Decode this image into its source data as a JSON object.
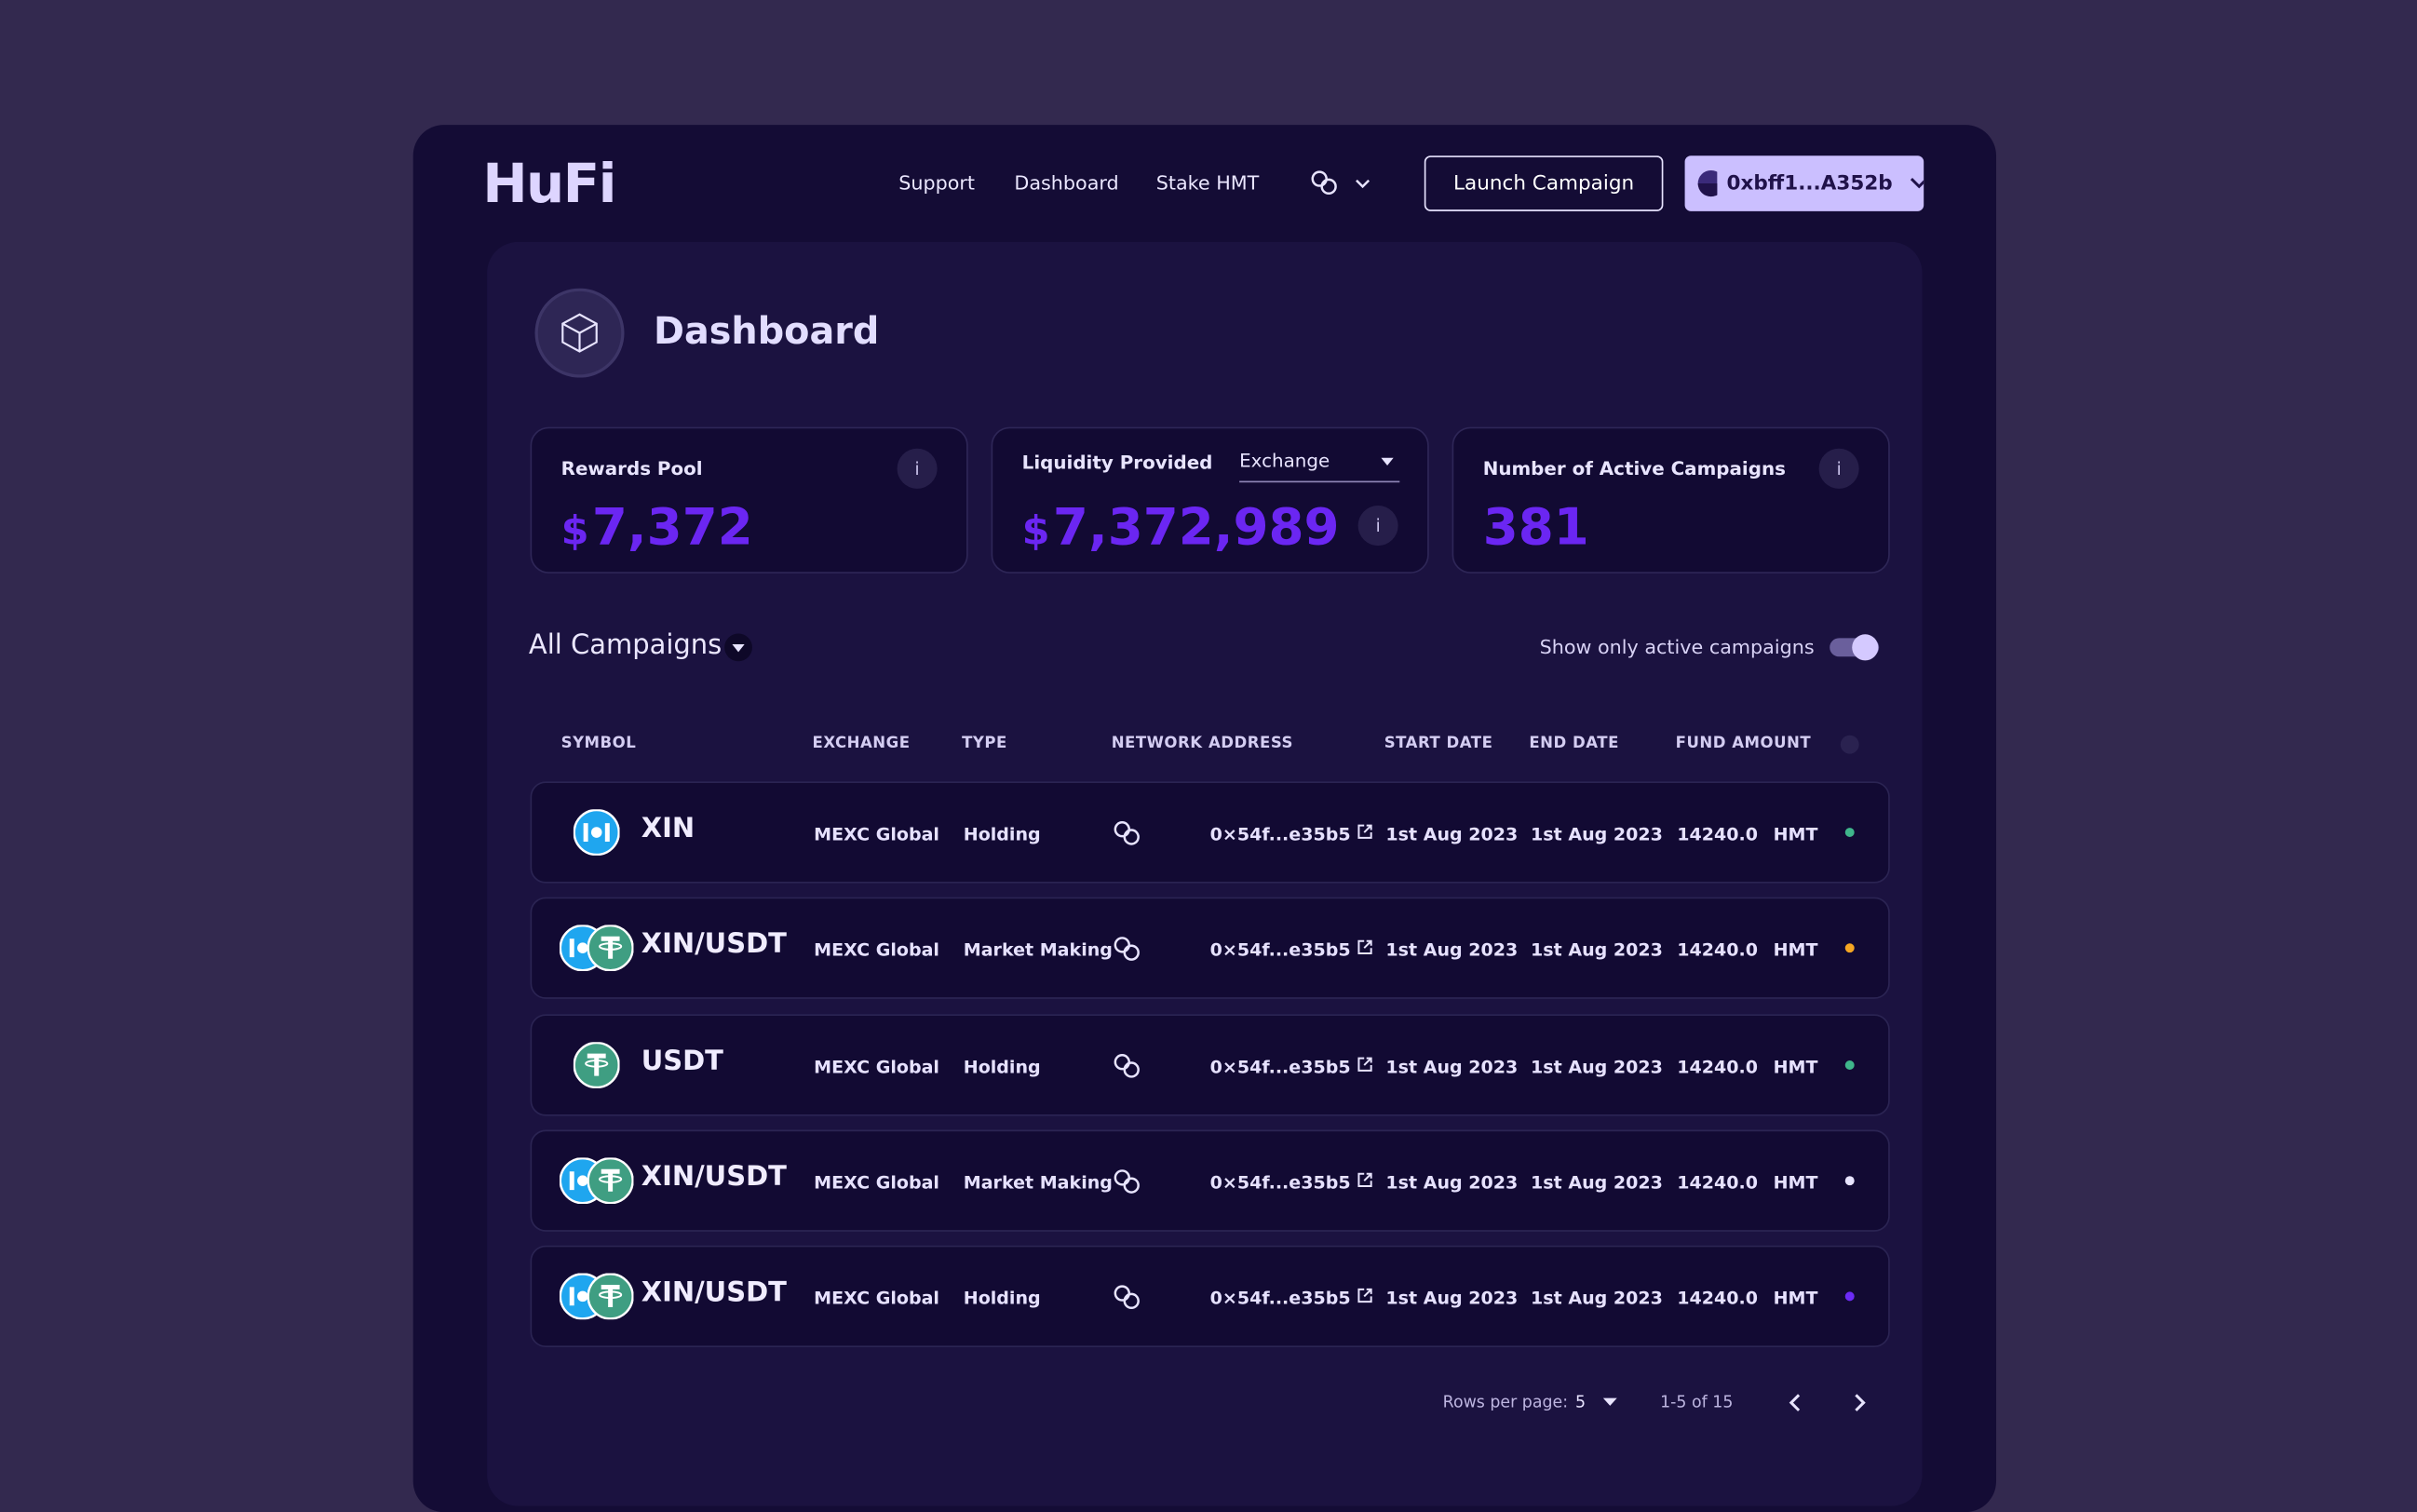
{
  "header": {
    "logo": "HuFi",
    "nav": [
      "Support",
      "Dashboard",
      "Stake HMT"
    ],
    "launch": "Launch Campaign",
    "wallet": "0xbff1...A352b"
  },
  "page": {
    "title": "Dashboard"
  },
  "stats": [
    {
      "label": "Rewards Pool",
      "currency": "$",
      "value": "7,372",
      "info": "i"
    },
    {
      "label": "Liquidity Provided",
      "selector": "Exchange",
      "currency": "$",
      "value": "7,372,989",
      "info": "i"
    },
    {
      "label": "Number of Active Campaigns",
      "value": "381",
      "info": "i"
    }
  ],
  "campaigns": {
    "title": "All Campaigns",
    "toggle_label": "Show only active campaigns",
    "columns": [
      "SYMBOL",
      "EXCHANGE",
      "TYPE",
      "NETWORK",
      "ADDRESS",
      "START DATE",
      "END DATE",
      "FUND AMOUNT"
    ],
    "rows": [
      {
        "symbol": "XIN",
        "exchange": "MEXC Global",
        "type": "Holding",
        "address": "0×54f...e35b5",
        "start": "1st Aug 2023",
        "end": "1st Aug 2023",
        "amount": "14240.0",
        "token": "HMT",
        "status_color": "#3fb68b"
      },
      {
        "symbol": "XIN/USDT",
        "exchange": "MEXC Global",
        "type": "Market Making",
        "address": "0×54f...e35b5",
        "start": "1st Aug 2023",
        "end": "1st Aug 2023",
        "amount": "14240.0",
        "token": "HMT",
        "status_color": "#f5a623"
      },
      {
        "symbol": "USDT",
        "exchange": "MEXC Global",
        "type": "Holding",
        "address": "0×54f...e35b5",
        "start": "1st Aug 2023",
        "end": "1st Aug 2023",
        "amount": "14240.0",
        "token": "HMT",
        "status_color": "#3fb68b"
      },
      {
        "symbol": "XIN/USDT",
        "exchange": "MEXC Global",
        "type": "Market Making",
        "address": "0×54f...e35b5",
        "start": "1st Aug 2023",
        "end": "1st Aug 2023",
        "amount": "14240.0",
        "token": "HMT",
        "status_color": "#e8e4ff"
      },
      {
        "symbol": "XIN/USDT",
        "exchange": "MEXC Global",
        "type": "Holding",
        "address": "0×54f...e35b5",
        "start": "1st Aug 2023",
        "end": "1st Aug 2023",
        "amount": "14240.0",
        "token": "HMT",
        "status_color": "#6c2bf5"
      }
    ]
  },
  "pagination": {
    "rows_label": "Rows per page:",
    "rows_value": "5",
    "range": "1-5 of 15"
  }
}
